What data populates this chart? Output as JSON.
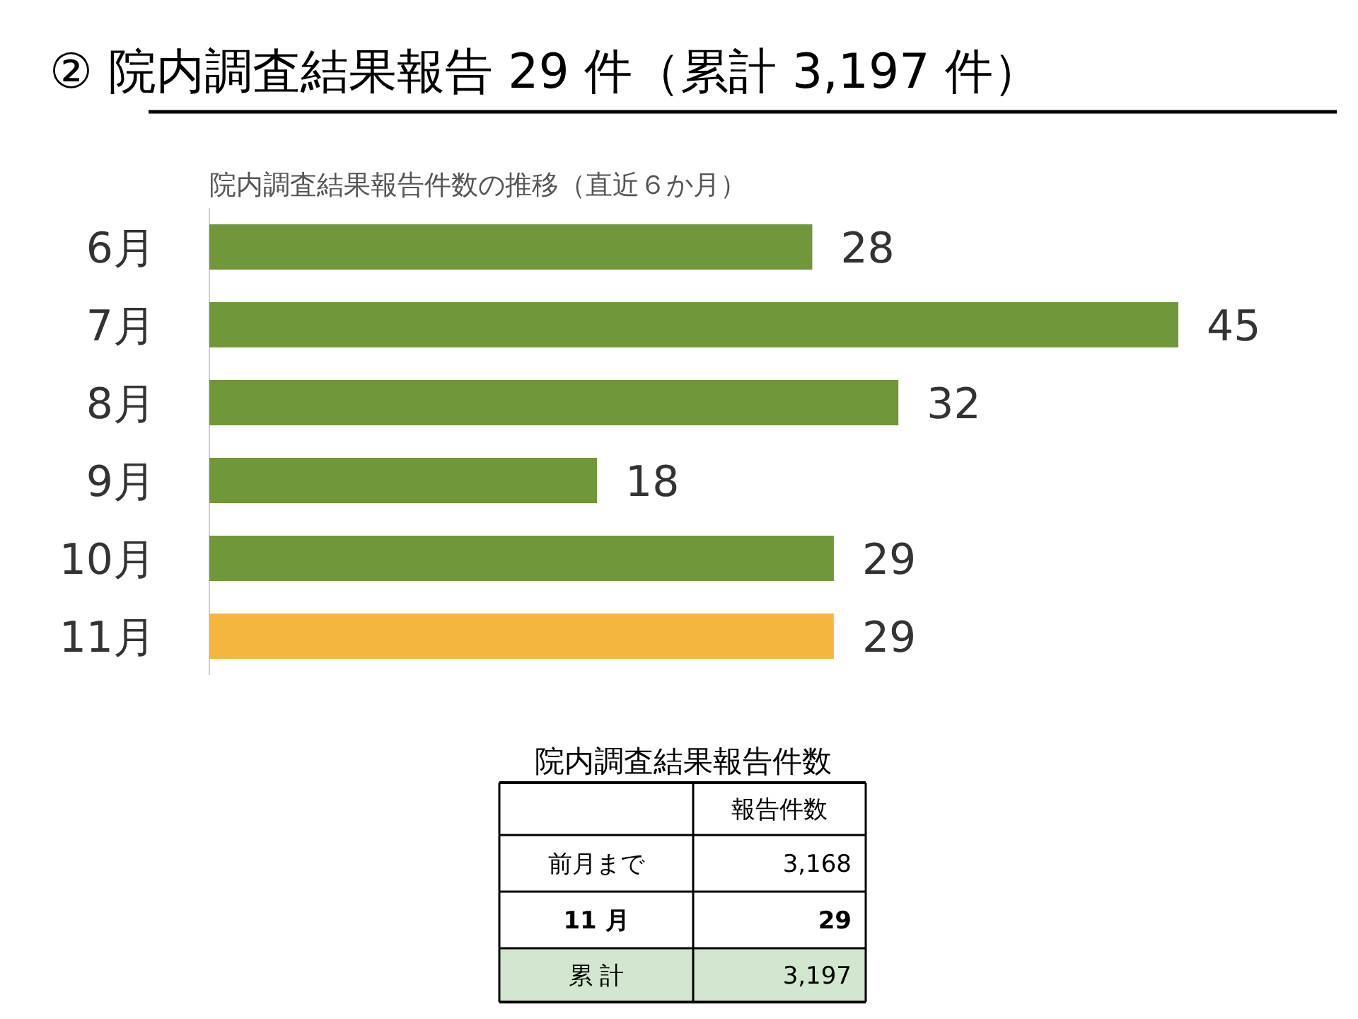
{
  "chart_data": [
    {
      "type": "bar",
      "orientation": "horizontal",
      "title": "② 院内調査結果報告 29 件（累計 3,197 件）",
      "subtitle": "院内調査結果報告件数の推移（直近６か月）",
      "categories": [
        "6月",
        "7月",
        "8月",
        "9月",
        "10月",
        "11月"
      ],
      "values": [
        28,
        45,
        32,
        18,
        29,
        29
      ],
      "colors": [
        "#70973a",
        "#70973a",
        "#70973a",
        "#70973a",
        "#70973a",
        "#f4b63f"
      ],
      "data_labels": true
    },
    {
      "type": "other",
      "title": "院内調査結果報告件数",
      "categories": [
        null,
        "報告件数"
      ],
      "y_categories": [
        "前月まで",
        "11 月",
        "累 計"
      ],
      "cell_labels": [
        [
          "3,168"
        ],
        [
          "29"
        ],
        [
          "3,197"
        ]
      ]
    }
  ]
}
